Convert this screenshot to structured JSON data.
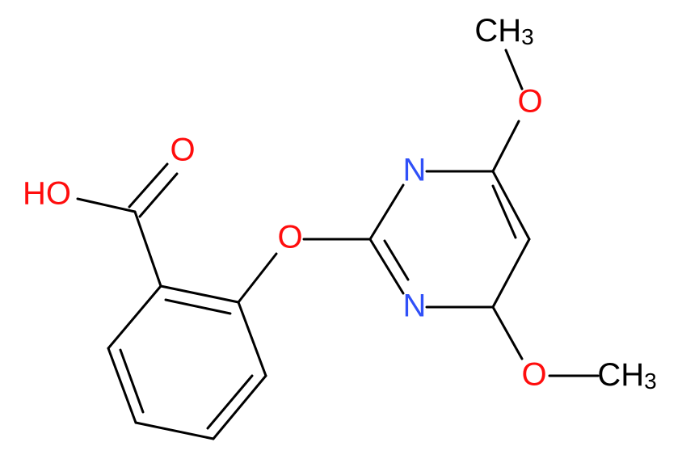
{
  "atoms": [
    {
      "label": "O"
    },
    {
      "label": "HO"
    },
    {
      "label": "O"
    },
    {
      "label": "N"
    },
    {
      "label": "N"
    },
    {
      "label": "O"
    },
    {
      "label": "CH",
      "sub": "3"
    },
    {
      "label": "O"
    },
    {
      "label": "CH",
      "sub": "3"
    }
  ]
}
